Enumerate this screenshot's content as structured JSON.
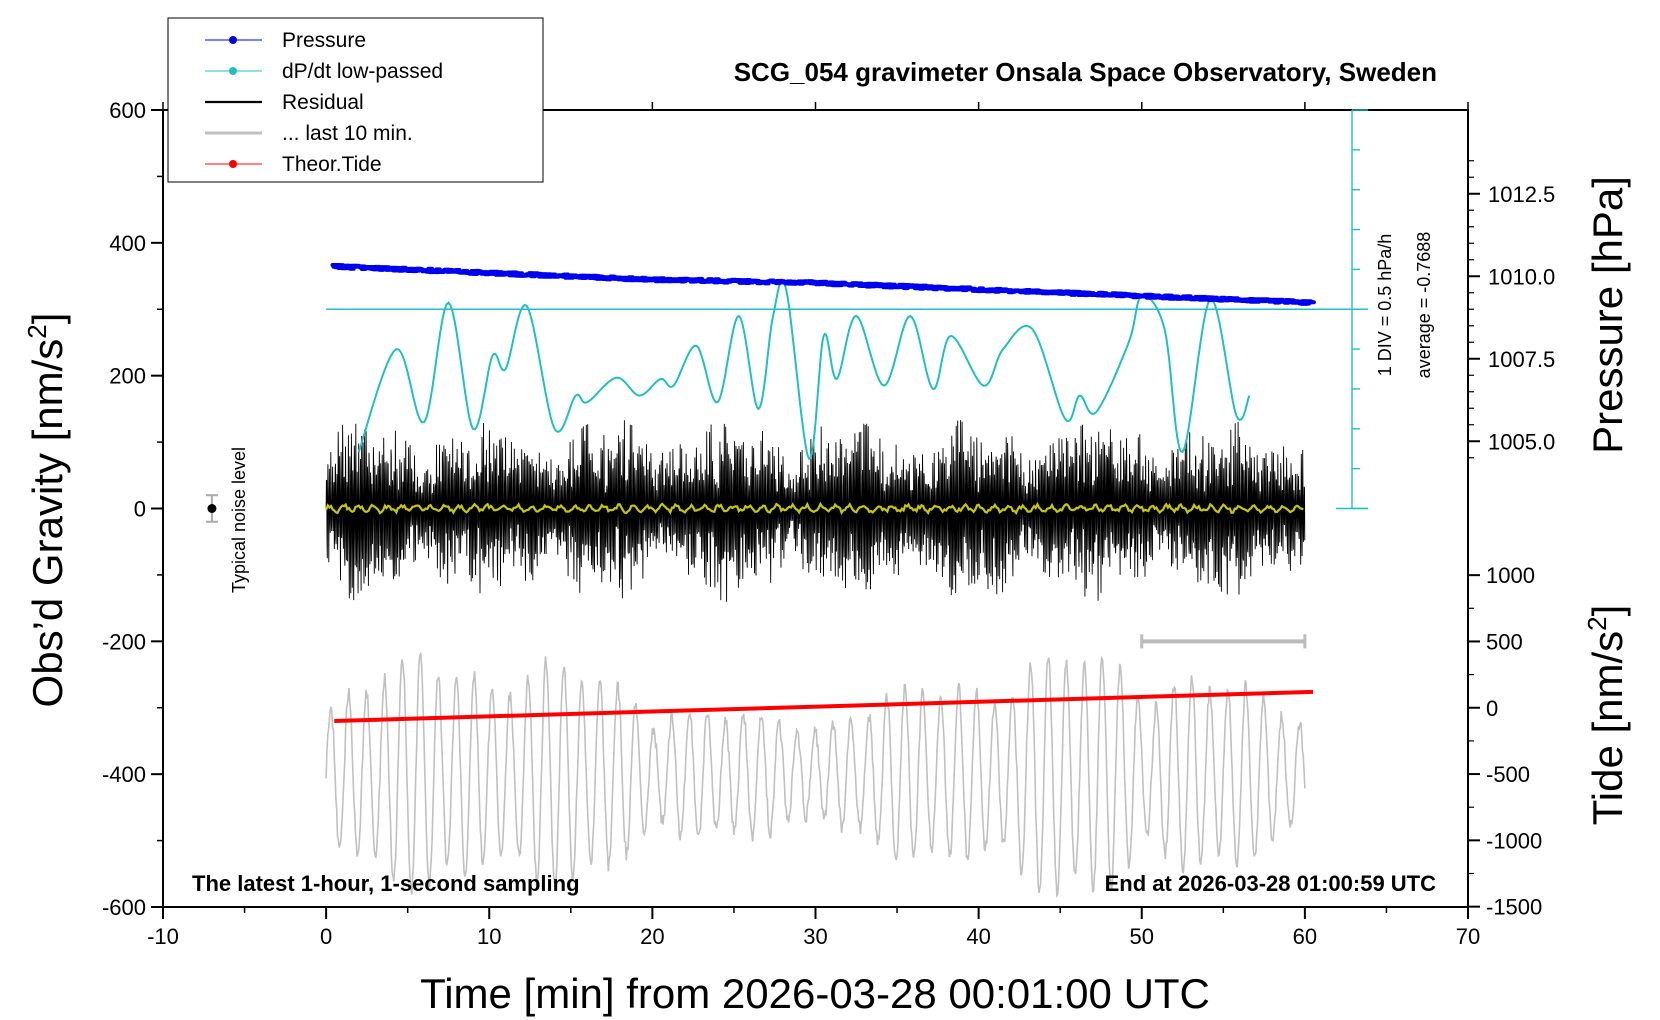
{
  "chart_data": {
    "type": "line",
    "title": "SCG_054 gravimeter Onsala Space Observatory, Sweden",
    "xlabel": "Time [min] from 2026-03-28 00:01:00 UTC",
    "ylabel_left": "Obs’d Gravity [nm/s²]",
    "ylabel_left_parts": {
      "main": "Obs’d Gravity [nm/s",
      "sup": "2",
      "end": "]"
    },
    "ylabel_right_pressure": "Pressure [hPa]",
    "ylabel_right_tide_parts": {
      "main": "Tide [nm/s",
      "sup": "2",
      "end": "]"
    },
    "bottom_left_note": "The latest 1-hour, 1-second sampling",
    "bottom_right_note": "End at 2026-03-28 01:00:59 UTC",
    "noise_label": "Typical noise level",
    "scale_note_div": "1 DIV = 0.5 hPa/h",
    "scale_note_avg": "average = -0.7688",
    "xlim": [
      -10,
      70
    ],
    "ylim_left": [
      -600,
      600
    ],
    "x_ticks": [
      "-10",
      "0",
      "10",
      "20",
      "30",
      "40",
      "50",
      "60",
      "70"
    ],
    "y_ticks_left": [
      "600",
      "400",
      "200",
      "0",
      "-200",
      "-400",
      "-600"
    ],
    "pressure_ticks": [
      "1012.5",
      "1010.0",
      "1007.5",
      "1005.0"
    ],
    "tide_ticks": [
      "1000",
      "500",
      "0",
      "-500",
      "-1000",
      "-1500"
    ],
    "legend": {
      "placement": "top-left",
      "entries": [
        "Pressure",
        "dP/dt low-passed",
        "Residual",
        "... last 10 min.",
        "Theor.Tide"
      ]
    },
    "colors": {
      "pressure": "#0000ee",
      "dpdt": "#20c0c0",
      "residual": "#000000",
      "last10": "#c0c0c0",
      "tide": "#ff0000",
      "filtered": "#c8c800"
    },
    "series": [
      {
        "name": "Pressure",
        "axis": "pressure_hPa",
        "x": [
          0.5,
          10,
          20,
          30,
          40,
          50,
          60.5
        ],
        "values": [
          1010.3,
          1010.1,
          1009.9,
          1009.8,
          1009.6,
          1009.4,
          1009.2
        ]
      },
      {
        "name": "dP/dt low-passed",
        "axis": "gravity_nm_s2_display",
        "x": [
          2,
          4.3,
          6,
          7.5,
          9,
          10.2,
          11,
          12.3,
          14,
          15.3,
          16,
          17.8,
          19.2,
          20.5,
          21.3,
          22.7,
          24,
          25.3,
          26.5,
          27.4,
          28.2,
          29.6,
          30.5,
          31.3,
          32.5,
          34.2,
          35.8,
          37.2,
          38.3,
          40.3,
          41.5,
          43.3,
          45.3,
          46.2,
          47.2,
          49.2,
          50,
          51.4,
          52.5,
          54.2,
          55.8,
          56.6
        ],
        "values": [
          85,
          240,
          130,
          310,
          120,
          230,
          210,
          305,
          120,
          170,
          160,
          197,
          170,
          195,
          185,
          245,
          160,
          290,
          150,
          290,
          330,
          75,
          260,
          195,
          290,
          185,
          290,
          180,
          260,
          185,
          240,
          270,
          135,
          170,
          145,
          250,
          320,
          270,
          85,
          315,
          140,
          170
        ]
      },
      {
        "name": "Theor.Tide",
        "axis": "tide_nm_s2",
        "x": [
          0.5,
          60.5
        ],
        "values": [
          -100,
          120
        ]
      }
    ],
    "noise_bar": {
      "x": -7,
      "y": 0,
      "err": 20
    },
    "last10_bracket": {
      "x_start": 50,
      "x_end": 60
    },
    "dpdt_average_line": {
      "y": 300
    }
  }
}
